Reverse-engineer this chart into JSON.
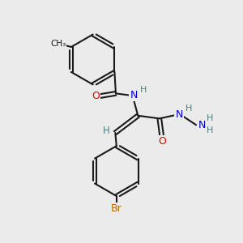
{
  "background_color": "#ebebeb",
  "bond_color": "#1a1a1a",
  "atom_colors": {
    "O": "#dd0000",
    "N": "#0000cc",
    "Br": "#bb6600",
    "C": "#1a1a1a",
    "H": "#4a8080"
  },
  "figsize": [
    3.0,
    3.0
  ],
  "dpi": 100
}
